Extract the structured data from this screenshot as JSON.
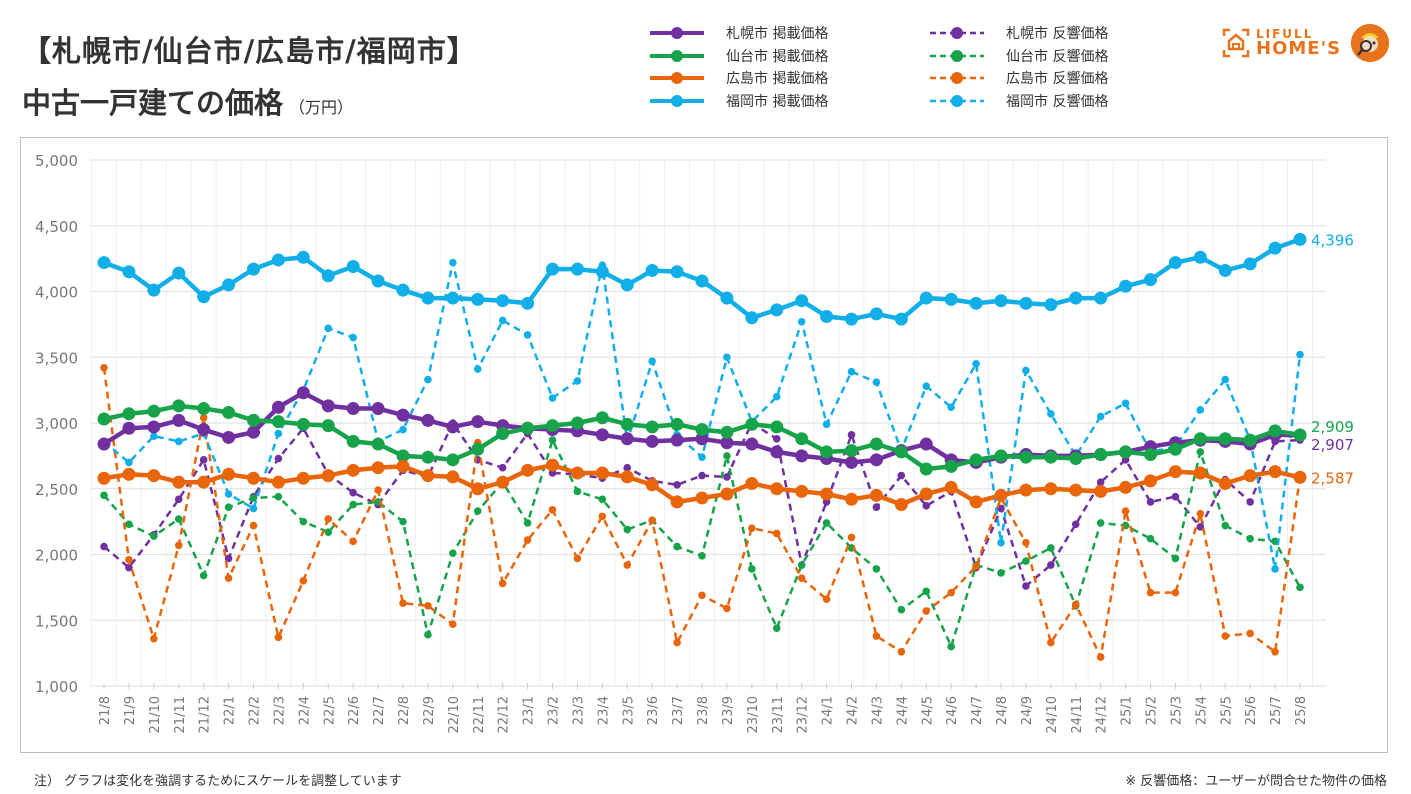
{
  "header": {
    "title_line1": "【札幌市/仙台市/広島市/福岡市】",
    "title_line2": "中古一戸建ての価格",
    "unit": "（万円）"
  },
  "logo": {
    "line1": "LIFULL",
    "line2": "HOME'S",
    "icon": "house-icon"
  },
  "colors": {
    "sapporo": "#7030a0",
    "sendai": "#16a34a",
    "hiroshima": "#e8650a",
    "fukuoka": "#11aee8"
  },
  "legend": [
    {
      "label": "札幌市 掲載価格",
      "key": "sapporo",
      "style": "solid"
    },
    {
      "label": "仙台市 掲載価格",
      "key": "sendai",
      "style": "solid"
    },
    {
      "label": "広島市 掲載価格",
      "key": "hiroshima",
      "style": "solid"
    },
    {
      "label": "福岡市 掲載価格",
      "key": "fukuoka",
      "style": "solid"
    },
    {
      "label": "札幌市 反響価格",
      "key": "sapporo",
      "style": "dashed"
    },
    {
      "label": "仙台市 反響価格",
      "key": "sendai",
      "style": "dashed"
    },
    {
      "label": "広島市 反響価格",
      "key": "hiroshima",
      "style": "dashed"
    },
    {
      "label": "福岡市 反響価格",
      "key": "fukuoka",
      "style": "dashed"
    }
  ],
  "footer": {
    "note_left": "注） グラフは変化を強調するためにスケールを調整しています",
    "note_right": "※ 反響価格：ユーザーが問合せた物件の価格"
  },
  "chart_data": {
    "type": "line",
    "title": "【札幌市/仙台市/広島市/福岡市】中古一戸建ての価格",
    "ylabel": "万円",
    "xlabel": "",
    "ylim": [
      1000,
      5000
    ],
    "yticks": [
      1000,
      1500,
      2000,
      2500,
      3000,
      3500,
      4000,
      4500,
      5000
    ],
    "ytick_labels": [
      "1,000",
      "1,500",
      "2,000",
      "2,500",
      "3,000",
      "3,500",
      "4,000",
      "4,500",
      "5,000"
    ],
    "grid": true,
    "legend_position": "top-right",
    "x": [
      "21/8",
      "21/9",
      "21/10",
      "21/11",
      "21/12",
      "22/1",
      "22/2",
      "22/3",
      "22/4",
      "22/5",
      "22/6",
      "22/7",
      "22/8",
      "22/9",
      "22/10",
      "22/11",
      "22/12",
      "23/1",
      "23/2",
      "23/3",
      "23/4",
      "23/5",
      "23/6",
      "23/7",
      "23/8",
      "23/9",
      "23/10",
      "23/11",
      "23/12",
      "24/1",
      "24/2",
      "24/3",
      "24/4",
      "24/5",
      "24/6",
      "24/7",
      "24/8",
      "24/9",
      "24/10",
      "24/11",
      "24/12",
      "25/1",
      "25/2",
      "25/3",
      "25/4",
      "25/5",
      "25/6",
      "25/7",
      "25/8"
    ],
    "series": [
      {
        "name": "札幌市 掲載価格",
        "key": "sapporo",
        "style": "solid",
        "values": [
          2840,
          2960,
          2970,
          3020,
          2950,
          2890,
          2930,
          3120,
          3230,
          3130,
          3110,
          3110,
          3060,
          3020,
          2970,
          3010,
          2980,
          2960,
          2950,
          2940,
          2910,
          2880,
          2860,
          2870,
          2880,
          2850,
          2840,
          2780,
          2750,
          2730,
          2700,
          2720,
          2790,
          2840,
          2720,
          2700,
          2740,
          2760,
          2750,
          2750,
          2760,
          2780,
          2820,
          2850,
          2870,
          2860,
          2840,
          2910,
          2907
        ],
        "end_label": "2,907"
      },
      {
        "name": "仙台市 掲載価格",
        "key": "sendai",
        "style": "solid",
        "values": [
          3030,
          3070,
          3090,
          3130,
          3110,
          3080,
          3020,
          3010,
          2990,
          2980,
          2860,
          2840,
          2750,
          2740,
          2720,
          2800,
          2920,
          2960,
          2980,
          3000,
          3040,
          2990,
          2970,
          2990,
          2950,
          2930,
          2990,
          2970,
          2880,
          2780,
          2790,
          2840,
          2780,
          2650,
          2670,
          2720,
          2750,
          2740,
          2740,
          2730,
          2760,
          2780,
          2760,
          2800,
          2880,
          2880,
          2870,
          2940,
          2909
        ],
        "end_label": "2,909"
      },
      {
        "name": "広島市 掲載価格",
        "key": "hiroshima",
        "style": "solid",
        "values": [
          2580,
          2610,
          2600,
          2550,
          2550,
          2610,
          2580,
          2550,
          2580,
          2600,
          2640,
          2660,
          2670,
          2600,
          2590,
          2500,
          2550,
          2640,
          2680,
          2620,
          2620,
          2590,
          2530,
          2400,
          2430,
          2460,
          2540,
          2500,
          2480,
          2460,
          2420,
          2450,
          2380,
          2460,
          2510,
          2400,
          2450,
          2490,
          2500,
          2490,
          2480,
          2510,
          2560,
          2630,
          2620,
          2540,
          2600,
          2630,
          2587
        ],
        "end_label": "2,587"
      },
      {
        "name": "福岡市 掲載価格",
        "key": "fukuoka",
        "style": "solid",
        "values": [
          4220,
          4150,
          4010,
          4140,
          3960,
          4050,
          4170,
          4240,
          4260,
          4120,
          4190,
          4080,
          4010,
          3950,
          3950,
          3940,
          3930,
          3910,
          4170,
          4170,
          4150,
          4050,
          4160,
          4150,
          4080,
          3950,
          3800,
          3860,
          3930,
          3810,
          3790,
          3830,
          3790,
          3950,
          3940,
          3910,
          3930,
          3910,
          3900,
          3950,
          3950,
          4040,
          4090,
          4220,
          4260,
          4160,
          4210,
          4330,
          4396
        ],
        "end_label": "4,396"
      },
      {
        "name": "札幌市 反響価格",
        "key": "sapporo",
        "style": "dashed",
        "values": [
          2060,
          1900,
          2150,
          2420,
          2720,
          1970,
          2440,
          2730,
          2960,
          2610,
          2470,
          2380,
          2640,
          2590,
          3000,
          2720,
          2660,
          2920,
          2620,
          2610,
          2580,
          2660,
          2560,
          2530,
          2600,
          2590,
          3000,
          2880,
          1920,
          2400,
          2910,
          2360,
          2600,
          2370,
          2480,
          1900,
          2350,
          1760,
          1920,
          2230,
          2550,
          2720,
          2400,
          2440,
          2210,
          2570,
          2400,
          2860,
          2870
        ]
      },
      {
        "name": "仙台市 反響価格",
        "key": "sendai",
        "style": "dashed",
        "values": [
          2450,
          2230,
          2140,
          2270,
          1840,
          2360,
          2430,
          2440,
          2250,
          2170,
          2380,
          2400,
          2250,
          1390,
          2010,
          2330,
          2550,
          2240,
          2870,
          2480,
          2420,
          2190,
          2260,
          2060,
          1990,
          2750,
          1890,
          1440,
          1920,
          2240,
          2050,
          1890,
          1580,
          1720,
          1300,
          1920,
          1860,
          1950,
          2050,
          1610,
          2240,
          2220,
          2120,
          1970,
          2780,
          2220,
          2120,
          2100,
          1750
        ]
      },
      {
        "name": "広島市 反響価格",
        "key": "hiroshima",
        "style": "dashed",
        "values": [
          3420,
          1960,
          1360,
          2070,
          3040,
          1820,
          2220,
          1370,
          1800,
          2270,
          2100,
          2490,
          1630,
          1610,
          1470,
          2850,
          1780,
          2110,
          2340,
          1970,
          2290,
          1920,
          2260,
          1330,
          1690,
          1590,
          2200,
          2160,
          1820,
          1660,
          2130,
          1380,
          1260,
          1570,
          1710,
          1910,
          2430,
          2090,
          1330,
          1620,
          1220,
          2330,
          1710,
          1710,
          2310,
          1380,
          1400,
          1260,
          2587
        ]
      },
      {
        "name": "福岡市 反響価格",
        "key": "fukuoka",
        "style": "dashed",
        "values": [
          2860,
          2700,
          2900,
          2860,
          2920,
          2460,
          2350,
          2920,
          3250,
          3720,
          3650,
          2860,
          2950,
          3330,
          4220,
          3410,
          3780,
          3670,
          3190,
          3320,
          4200,
          2860,
          3470,
          2910,
          2740,
          3500,
          3010,
          3200,
          3770,
          2990,
          3390,
          3310,
          2790,
          3280,
          3120,
          3450,
          2090,
          3400,
          3070,
          2750,
          3050,
          3150,
          2780,
          2820,
          3100,
          3330,
          2870,
          1890,
          3520
        ]
      }
    ]
  }
}
